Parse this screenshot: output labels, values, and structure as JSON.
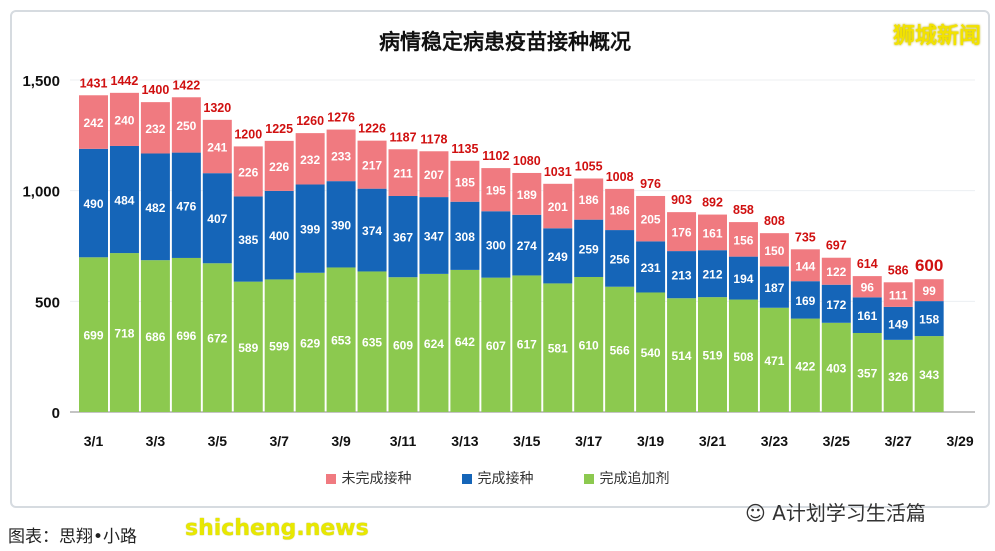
{
  "title": "病情稳定病患疫苗接种概况",
  "logo_text": "狮城新闻",
  "watermark": "A计划学习生活篇",
  "caption": "图表：思翔•小路",
  "source_watermark": "shicheng.news",
  "chart_data": {
    "type": "bar",
    "stacked": true,
    "title": "病情稳定病患疫苗接种概况",
    "categories": [
      "3/1",
      "3/2",
      "3/3",
      "3/4",
      "3/5",
      "3/6",
      "3/7",
      "3/8",
      "3/9",
      "3/10",
      "3/11",
      "3/12",
      "3/13",
      "3/14",
      "3/15",
      "3/16",
      "3/17",
      "3/18",
      "3/19",
      "3/20",
      "3/21",
      "3/22",
      "3/23",
      "3/24",
      "3/25",
      "3/26",
      "3/27",
      "3/28"
    ],
    "x_tick_labels": [
      "3/1",
      "3/3",
      "3/5",
      "3/7",
      "3/9",
      "3/11",
      "3/13",
      "3/15",
      "3/17",
      "3/19",
      "3/21",
      "3/23",
      "3/25",
      "3/27",
      "3/29"
    ],
    "y_tick_labels": [
      "0",
      "500",
      "1,000",
      "1,500"
    ],
    "ylim": [
      0,
      1500
    ],
    "grid": true,
    "legend_position": "bottom",
    "series": [
      {
        "name": "完成追加剂",
        "color": "#8cc94f",
        "values": [
          699,
          718,
          686,
          696,
          672,
          589,
          599,
          629,
          653,
          635,
          609,
          624,
          642,
          607,
          617,
          581,
          610,
          566,
          540,
          514,
          519,
          508,
          471,
          422,
          403,
          357,
          326,
          343
        ]
      },
      {
        "name": "完成接种",
        "color": "#1565b8",
        "values": [
          490,
          484,
          482,
          476,
          407,
          385,
          400,
          399,
          390,
          374,
          367,
          347,
          308,
          300,
          274,
          249,
          259,
          256,
          231,
          213,
          212,
          194,
          187,
          169,
          172,
          161,
          149,
          158
        ]
      },
      {
        "name": "未完成接种",
        "color": "#f07a80",
        "values": [
          242,
          240,
          232,
          250,
          241,
          226,
          226,
          232,
          233,
          217,
          211,
          207,
          185,
          195,
          189,
          201,
          186,
          186,
          205,
          176,
          161,
          156,
          150,
          144,
          122,
          96,
          111,
          99
        ]
      }
    ],
    "totals": [
      1431,
      1442,
      1400,
      1422,
      1320,
      1200,
      1225,
      1260,
      1276,
      1226,
      1187,
      1178,
      1135,
      1102,
      1080,
      1031,
      1055,
      1008,
      976,
      903,
      892,
      858,
      808,
      735,
      697,
      614,
      586,
      600
    ],
    "total_label_color": "#d01010"
  }
}
